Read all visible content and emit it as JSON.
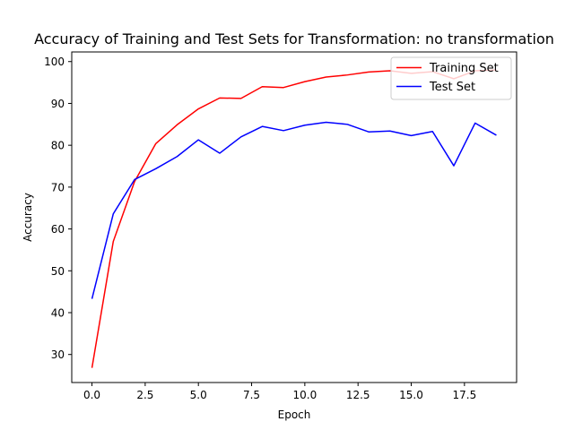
{
  "chart_data": {
    "type": "line",
    "title": "Accuracy of Training and Test Sets for Transformation: no transformation",
    "xlabel": "Epoch",
    "ylabel": "Accuracy",
    "xlim": [
      -0.95,
      19.95
    ],
    "ylim": [
      23.3,
      102.3
    ],
    "x_ticks": [
      0.0,
      2.5,
      5.0,
      7.5,
      10.0,
      12.5,
      15.0,
      17.5
    ],
    "x_tick_labels": [
      "0.0",
      "2.5",
      "5.0",
      "7.5",
      "10.0",
      "12.5",
      "15.0",
      "17.5"
    ],
    "y_ticks": [
      30,
      40,
      50,
      60,
      70,
      80,
      90,
      100
    ],
    "y_tick_labels": [
      "30",
      "40",
      "50",
      "60",
      "70",
      "80",
      "90",
      "100"
    ],
    "grid": false,
    "legend_position": "top-right",
    "x": [
      0,
      1,
      2,
      3,
      4,
      5,
      6,
      7,
      8,
      9,
      10,
      11,
      12,
      13,
      14,
      15,
      16,
      17,
      18,
      19
    ],
    "series": [
      {
        "name": "Training Set",
        "color": "#ff0000",
        "values": [
          26.8,
          57.0,
          71.3,
          80.4,
          84.9,
          88.7,
          91.3,
          91.2,
          94.0,
          93.8,
          95.2,
          96.3,
          96.8,
          97.5,
          97.8,
          97.2,
          97.6,
          95.9,
          97.8,
          98.0
        ]
      },
      {
        "name": "Test Set",
        "color": "#0000ff",
        "values": [
          43.3,
          63.6,
          71.8,
          74.4,
          77.3,
          81.3,
          78.1,
          82.0,
          84.5,
          83.5,
          84.8,
          85.5,
          85.0,
          83.2,
          83.4,
          82.3,
          83.3,
          75.1,
          85.3,
          82.4
        ]
      }
    ]
  }
}
